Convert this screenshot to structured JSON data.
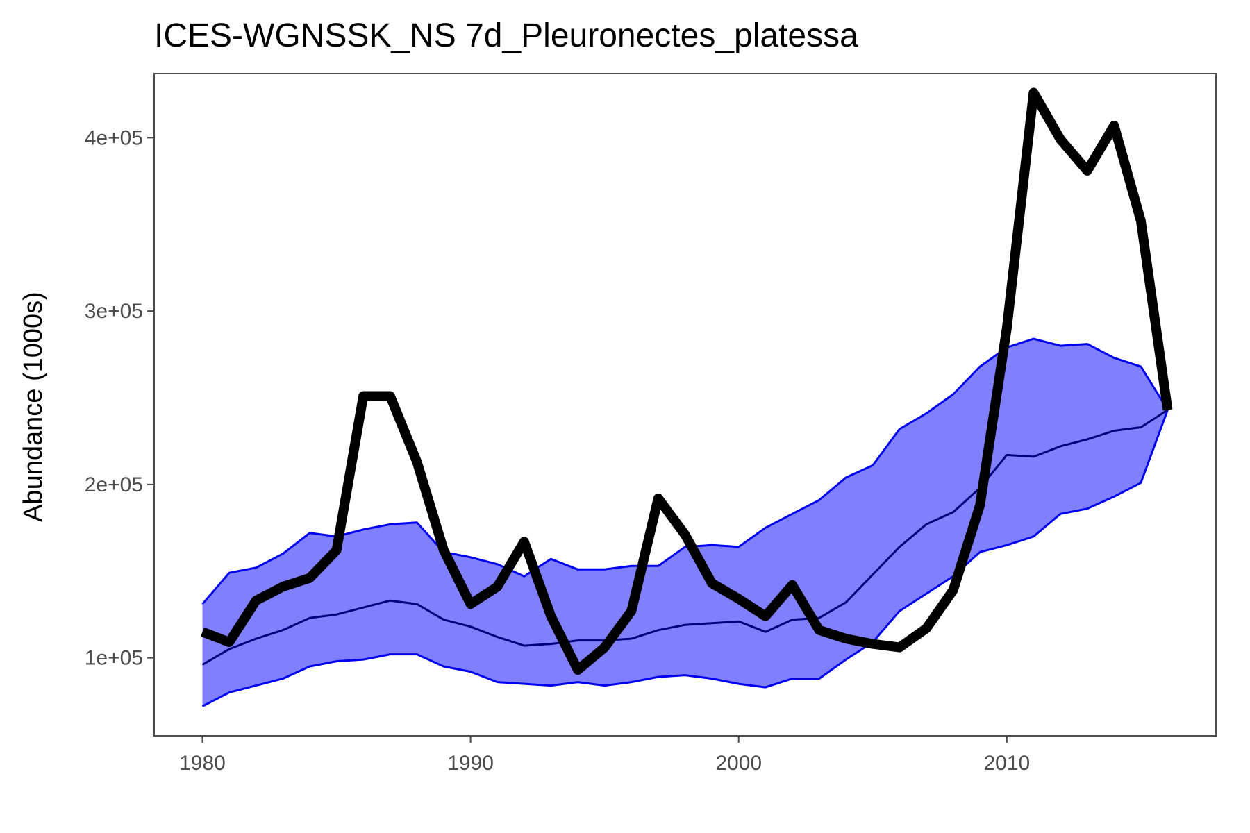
{
  "chart_data": {
    "type": "line",
    "title": "ICES-WGNSSK_NS 7d_Pleuronectes_platessa",
    "xlabel": "",
    "ylabel": "Abundance (1000s)",
    "xlim": [
      1978.2,
      2017.8
    ],
    "ylim": [
      55000,
      437000
    ],
    "x_ticks": [
      1980,
      1990,
      2000,
      2010
    ],
    "x_tick_labels": [
      "1980",
      "1990",
      "2000",
      "2010"
    ],
    "y_ticks": [
      100000,
      200000,
      300000,
      400000
    ],
    "y_tick_labels": [
      "1e+05",
      "2e+05",
      "3e+05",
      "4e+05"
    ],
    "grid": false,
    "x": [
      1980,
      1981,
      1982,
      1983,
      1984,
      1985,
      1986,
      1987,
      1988,
      1989,
      1990,
      1991,
      1992,
      1993,
      1994,
      1995,
      1996,
      1997,
      1998,
      1999,
      2000,
      2001,
      2002,
      2003,
      2004,
      2005,
      2006,
      2007,
      2008,
      2009,
      2010,
      2011,
      2012,
      2013,
      2014,
      2015,
      2016
    ],
    "series": [
      {
        "role": "band",
        "upper": [
          131000,
          149000,
          152000,
          160000,
          172000,
          170000,
          174000,
          177000,
          178000,
          161000,
          158000,
          154000,
          147000,
          157000,
          151000,
          151000,
          153000,
          153000,
          164000,
          165000,
          164000,
          175000,
          183000,
          191000,
          204000,
          211000,
          232000,
          241000,
          252000,
          268000,
          279000,
          284000,
          280000,
          281000,
          273000,
          268000,
          243000
        ],
        "median": [
          96000,
          105000,
          111000,
          116000,
          123000,
          125000,
          129000,
          133000,
          131000,
          122000,
          118000,
          112000,
          107000,
          108000,
          110000,
          110000,
          111000,
          116000,
          119000,
          120000,
          121000,
          115000,
          122000,
          123000,
          132000,
          148000,
          164000,
          177000,
          184000,
          198000,
          217000,
          216000,
          222000,
          226000,
          231000,
          233000,
          243000
        ],
        "lower": [
          72000,
          80000,
          84000,
          88000,
          95000,
          98000,
          99000,
          102000,
          102000,
          95000,
          92000,
          86000,
          85000,
          84000,
          86000,
          84000,
          86000,
          89000,
          90000,
          88000,
          85000,
          83000,
          88000,
          88000,
          99000,
          109000,
          127000,
          137000,
          147000,
          161000,
          165000,
          170000,
          183000,
          186000,
          193000,
          201000,
          243000
        ]
      },
      {
        "role": "observed",
        "values": [
          115000,
          109000,
          133000,
          141000,
          146000,
          162000,
          251000,
          251000,
          213000,
          162000,
          131000,
          141000,
          167000,
          124000,
          93000,
          106000,
          127000,
          192000,
          171000,
          143000,
          134000,
          124000,
          142000,
          116000,
          111000,
          108000,
          106000,
          117000,
          139000,
          188000,
          290000,
          426000,
          399000,
          381000,
          407000,
          352000,
          243000
        ]
      }
    ],
    "colors": {
      "band_fill": "#8080ff",
      "band_edge": "#0000ee",
      "median_line": "#00007a",
      "observed_line": "#000000",
      "panel_border": "#4d4d4d"
    }
  }
}
